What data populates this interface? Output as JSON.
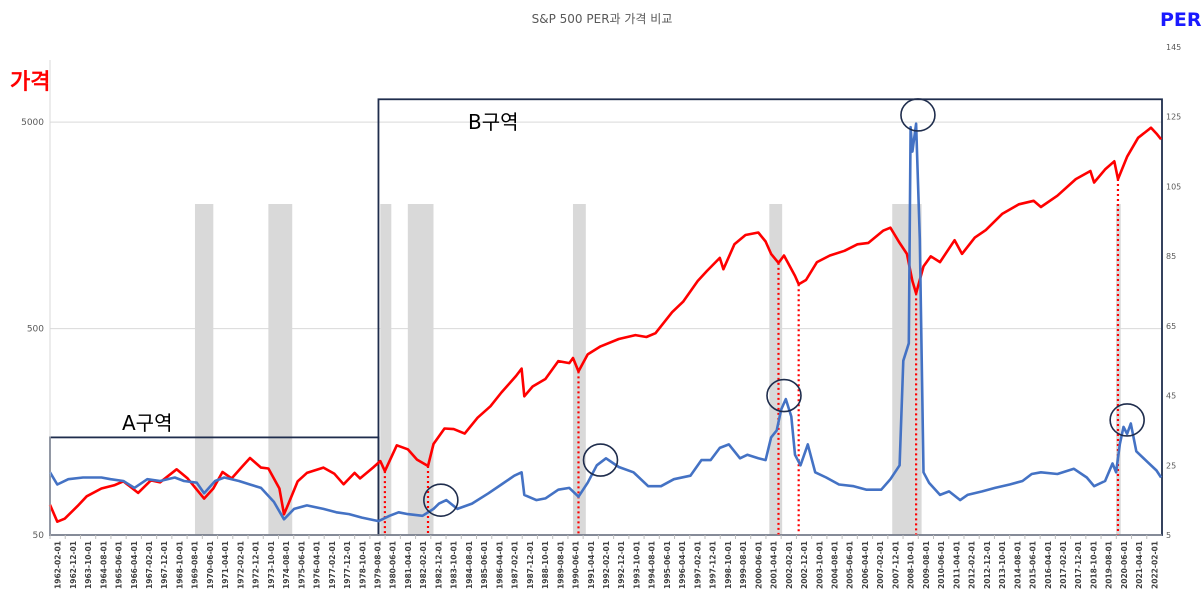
{
  "chart_data": {
    "type": "line",
    "title": "S&P 500 PER과 가격 비교",
    "y_left_label": "가격",
    "y_right_label": "PER",
    "y_left_scale": "log",
    "y_left_ticks": [
      "50",
      "500",
      "5000"
    ],
    "y_left_range": [
      50,
      10000
    ],
    "y_right_ticks": [
      "5",
      "25",
      "45",
      "65",
      "85",
      "105",
      "125",
      "145"
    ],
    "y_right_range": [
      5,
      145
    ],
    "x_range": [
      1962.0,
      2022.6
    ],
    "x_ticks": [
      "1962-02-01",
      "1962-12-01",
      "1963-10-01",
      "1964-08-01",
      "1965-06-01",
      "1966-04-01",
      "1967-02-01",
      "1967-12-01",
      "1968-10-01",
      "1969-08-01",
      "1970-06-01",
      "1971-04-01",
      "1972-02-01",
      "1972-12-01",
      "1973-10-01",
      "1974-08-01",
      "1975-06-01",
      "1976-04-01",
      "1977-02-01",
      "1977-12-01",
      "1978-10-01",
      "1979-08-01",
      "1980-06-01",
      "1981-04-01",
      "1982-02-01",
      "1982-12-01",
      "1983-10-01",
      "1984-08-01",
      "1985-06-01",
      "1986-04-01",
      "1987-02-01",
      "1987-12-01",
      "1988-10-01",
      "1989-08-01",
      "1990-06-01",
      "1991-04-01",
      "1992-02-01",
      "1992-12-01",
      "1993-10-01",
      "1994-08-01",
      "1995-06-01",
      "1996-04-01",
      "1997-02-01",
      "1997-12-01",
      "1998-10-01",
      "1999-08-01",
      "2000-06-01",
      "2001-04-01",
      "2002-02-01",
      "2002-12-01",
      "2003-10-01",
      "2004-08-01",
      "2005-06-01",
      "2006-04-01",
      "2007-02-01",
      "2007-12-01",
      "2008-10-01",
      "2009-08-01",
      "2010-06-01",
      "2011-04-01",
      "2012-02-01",
      "2012-12-01",
      "2013-10-01",
      "2014-08-01",
      "2015-06-01",
      "2016-04-01",
      "2017-02-01",
      "2017-12-01",
      "2018-10-01",
      "2019-08-01",
      "2020-06-01",
      "2021-04-01",
      "2022-02-01"
    ],
    "recessions": [
      [
        1969.9,
        1970.9
      ],
      [
        1973.9,
        1975.2
      ],
      [
        1980.0,
        1980.6
      ],
      [
        1981.5,
        1982.9
      ],
      [
        1990.5,
        1991.2
      ],
      [
        2001.2,
        2001.9
      ],
      [
        2007.9,
        2009.5
      ],
      [
        2020.1,
        2020.35
      ]
    ],
    "price_series": {
      "name": "가격",
      "color": "#ff0000",
      "points": [
        [
          1962.0,
          70
        ],
        [
          1962.4,
          58
        ],
        [
          1962.8,
          60
        ],
        [
          1963.5,
          69
        ],
        [
          1964.0,
          77
        ],
        [
          1964.8,
          84
        ],
        [
          1965.5,
          87
        ],
        [
          1966.0,
          91
        ],
        [
          1966.8,
          80
        ],
        [
          1967.5,
          92
        ],
        [
          1968.0,
          90
        ],
        [
          1968.9,
          104
        ],
        [
          1969.5,
          94
        ],
        [
          1970.4,
          75
        ],
        [
          1970.9,
          84
        ],
        [
          1971.4,
          101
        ],
        [
          1971.9,
          94
        ],
        [
          1972.5,
          108
        ],
        [
          1972.9,
          118
        ],
        [
          1973.5,
          106
        ],
        [
          1973.9,
          105
        ],
        [
          1974.5,
          84
        ],
        [
          1974.75,
          63
        ],
        [
          1975.0,
          71
        ],
        [
          1975.5,
          91
        ],
        [
          1976.0,
          100
        ],
        [
          1976.9,
          106
        ],
        [
          1977.5,
          99
        ],
        [
          1978.0,
          88
        ],
        [
          1978.6,
          100
        ],
        [
          1978.9,
          94
        ],
        [
          1979.6,
          106
        ],
        [
          1980.0,
          114
        ],
        [
          1980.25,
          102
        ],
        [
          1980.9,
          136
        ],
        [
          1981.5,
          130
        ],
        [
          1982.0,
          116
        ],
        [
          1982.6,
          108
        ],
        [
          1982.9,
          138
        ],
        [
          1983.5,
          164
        ],
        [
          1984.0,
          163
        ],
        [
          1984.6,
          155
        ],
        [
          1985.3,
          185
        ],
        [
          1986.0,
          210
        ],
        [
          1986.6,
          245
        ],
        [
          1987.4,
          295
        ],
        [
          1987.7,
          320
        ],
        [
          1987.85,
          235
        ],
        [
          1988.3,
          262
        ],
        [
          1989.0,
          285
        ],
        [
          1989.7,
          348
        ],
        [
          1990.3,
          340
        ],
        [
          1990.5,
          360
        ],
        [
          1990.8,
          310
        ],
        [
          1991.3,
          375
        ],
        [
          1992.0,
          410
        ],
        [
          1993.0,
          445
        ],
        [
          1993.9,
          465
        ],
        [
          1994.5,
          455
        ],
        [
          1995.0,
          475
        ],
        [
          1995.9,
          600
        ],
        [
          1996.5,
          675
        ],
        [
          1997.3,
          850
        ],
        [
          1997.8,
          950
        ],
        [
          1998.5,
          1100
        ],
        [
          1998.7,
          970
        ],
        [
          1999.3,
          1280
        ],
        [
          1999.9,
          1420
        ],
        [
          2000.6,
          1460
        ],
        [
          2001.0,
          1320
        ],
        [
          2001.3,
          1150
        ],
        [
          2001.7,
          1040
        ],
        [
          2002.0,
          1130
        ],
        [
          2002.6,
          900
        ],
        [
          2002.8,
          820
        ],
        [
          2003.2,
          860
        ],
        [
          2003.8,
          1050
        ],
        [
          2004.5,
          1130
        ],
        [
          2005.3,
          1190
        ],
        [
          2006.0,
          1280
        ],
        [
          2006.6,
          1300
        ],
        [
          2007.4,
          1490
        ],
        [
          2007.8,
          1540
        ],
        [
          2008.3,
          1300
        ],
        [
          2008.7,
          1150
        ],
        [
          2009.0,
          850
        ],
        [
          2009.2,
          740
        ],
        [
          2009.6,
          1000
        ],
        [
          2010.0,
          1120
        ],
        [
          2010.5,
          1050
        ],
        [
          2011.3,
          1340
        ],
        [
          2011.7,
          1150
        ],
        [
          2012.4,
          1380
        ],
        [
          2013.0,
          1500
        ],
        [
          2013.9,
          1800
        ],
        [
          2014.8,
          2000
        ],
        [
          2015.6,
          2080
        ],
        [
          2016.0,
          1940
        ],
        [
          2016.9,
          2200
        ],
        [
          2017.9,
          2650
        ],
        [
          2018.7,
          2900
        ],
        [
          2018.9,
          2550
        ],
        [
          2019.5,
          2950
        ],
        [
          2020.0,
          3230
        ],
        [
          2020.2,
          2650
        ],
        [
          2020.7,
          3400
        ],
        [
          2021.3,
          4200
        ],
        [
          2022.0,
          4700
        ],
        [
          2022.3,
          4400
        ],
        [
          2022.55,
          4130
        ]
      ]
    },
    "per_series": {
      "name": "PER",
      "color": "#4472c4",
      "points": [
        [
          1962.0,
          23
        ],
        [
          1962.4,
          19.5
        ],
        [
          1963.0,
          21
        ],
        [
          1963.8,
          21.5
        ],
        [
          1964.8,
          21.5
        ],
        [
          1965.3,
          21
        ],
        [
          1966.0,
          20.5
        ],
        [
          1966.6,
          18.5
        ],
        [
          1967.3,
          21
        ],
        [
          1968.0,
          20.5
        ],
        [
          1968.8,
          21.5
        ],
        [
          1969.3,
          20.5
        ],
        [
          1970.0,
          20
        ],
        [
          1970.4,
          17
        ],
        [
          1971.0,
          20.5
        ],
        [
          1971.5,
          21.5
        ],
        [
          1972.3,
          20.5
        ],
        [
          1972.9,
          19.5
        ],
        [
          1973.5,
          18.5
        ],
        [
          1974.2,
          14.5
        ],
        [
          1974.75,
          9.5
        ],
        [
          1975.3,
          12.5
        ],
        [
          1976.0,
          13.5
        ],
        [
          1976.9,
          12.5
        ],
        [
          1977.6,
          11.5
        ],
        [
          1978.3,
          11
        ],
        [
          1979.0,
          10
        ],
        [
          1979.9,
          9
        ],
        [
          1980.5,
          10.5
        ],
        [
          1981.0,
          11.5
        ],
        [
          1981.5,
          11
        ],
        [
          1982.3,
          10.5
        ],
        [
          1982.9,
          12.5
        ],
        [
          1983.2,
          14
        ],
        [
          1983.6,
          15
        ],
        [
          1984.2,
          12.5
        ],
        [
          1985.0,
          14
        ],
        [
          1985.9,
          17
        ],
        [
          1986.6,
          19.5
        ],
        [
          1987.3,
          22
        ],
        [
          1987.7,
          23
        ],
        [
          1987.85,
          16.5
        ],
        [
          1988.5,
          15
        ],
        [
          1989.0,
          15.5
        ],
        [
          1989.7,
          18
        ],
        [
          1990.3,
          18.5
        ],
        [
          1990.8,
          16
        ],
        [
          1991.3,
          20
        ],
        [
          1991.8,
          25
        ],
        [
          1992.3,
          27
        ],
        [
          1993.0,
          24.5
        ],
        [
          1993.8,
          23
        ],
        [
          1994.6,
          19
        ],
        [
          1995.3,
          19
        ],
        [
          1996.0,
          21
        ],
        [
          1996.9,
          22
        ],
        [
          1997.5,
          26.5
        ],
        [
          1998.0,
          26.5
        ],
        [
          1998.5,
          30
        ],
        [
          1999.0,
          31
        ],
        [
          1999.6,
          27
        ],
        [
          2000.0,
          28
        ],
        [
          2000.6,
          27
        ],
        [
          2001.0,
          26.5
        ],
        [
          2001.3,
          33
        ],
        [
          2001.6,
          35
        ],
        [
          2001.85,
          41
        ],
        [
          2002.1,
          44
        ],
        [
          2002.4,
          39
        ],
        [
          2002.6,
          28
        ],
        [
          2002.9,
          25
        ],
        [
          2003.3,
          31
        ],
        [
          2003.7,
          23
        ],
        [
          2004.3,
          21.5
        ],
        [
          2005.0,
          19.5
        ],
        [
          2005.8,
          19
        ],
        [
          2006.5,
          18
        ],
        [
          2007.3,
          18
        ],
        [
          2007.8,
          21
        ],
        [
          2008.3,
          25
        ],
        [
          2008.5,
          55
        ],
        [
          2008.8,
          60
        ],
        [
          2008.9,
          122
        ],
        [
          2009.0,
          115
        ],
        [
          2009.2,
          123
        ],
        [
          2009.4,
          90
        ],
        [
          2009.6,
          23
        ],
        [
          2009.9,
          20
        ],
        [
          2010.5,
          16.5
        ],
        [
          2011.0,
          17.5
        ],
        [
          2011.6,
          15
        ],
        [
          2012.0,
          16.5
        ],
        [
          2012.8,
          17.5
        ],
        [
          2013.5,
          18.5
        ],
        [
          2014.3,
          19.5
        ],
        [
          2015.0,
          20.5
        ],
        [
          2015.5,
          22.5
        ],
        [
          2016.0,
          23
        ],
        [
          2016.9,
          22.5
        ],
        [
          2017.8,
          24
        ],
        [
          2018.5,
          21.5
        ],
        [
          2018.9,
          19
        ],
        [
          2019.5,
          20.5
        ],
        [
          2019.9,
          25.5
        ],
        [
          2020.1,
          23
        ],
        [
          2020.3,
          31
        ],
        [
          2020.5,
          36
        ],
        [
          2020.7,
          34
        ],
        [
          2020.9,
          37
        ],
        [
          2021.2,
          29
        ],
        [
          2021.8,
          26
        ],
        [
          2022.3,
          23.5
        ],
        [
          2022.55,
          21.5
        ]
      ]
    },
    "markers": {
      "dotted_lines_x": [
        1980.25,
        1982.6,
        1990.8,
        2001.7,
        2002.8,
        2009.2,
        2020.2
      ],
      "circles": [
        [
          1983.3,
          15
        ],
        [
          1992.0,
          26.5
        ],
        [
          2002.0,
          45
        ],
        [
          2009.3,
          125.5
        ],
        [
          2020.7,
          38
        ]
      ]
    },
    "annotations": {
      "zone_a": "A구역",
      "zone_b": "B구역",
      "zone_a_x_range": [
        1962.0,
        1979.9
      ],
      "zone_a_per_top": 33,
      "zone_b_x_range": [
        1979.9,
        2022.6
      ],
      "zone_b_per_top": 130
    }
  }
}
